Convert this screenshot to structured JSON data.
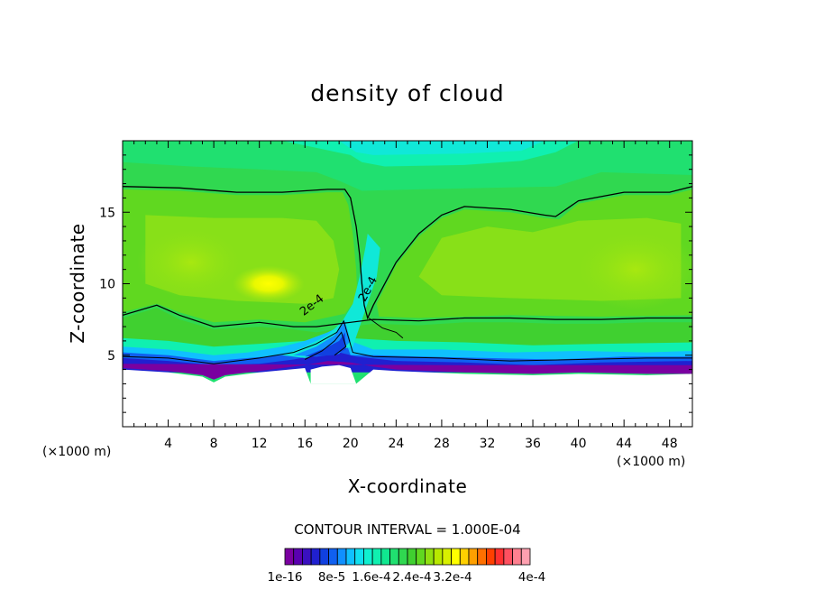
{
  "chart_data": {
    "type": "heatmap",
    "title": "density of cloud",
    "xlabel": "X-coordinate",
    "ylabel": "Z-coordinate",
    "x_unit": "(×1000 m)",
    "y_unit": "(×1000 m)",
    "xlim": [
      0,
      50
    ],
    "ylim": [
      0,
      20
    ],
    "x_ticks": [
      4,
      8,
      12,
      16,
      20,
      24,
      28,
      32,
      36,
      40,
      44,
      48
    ],
    "y_ticks": [
      5,
      10,
      15
    ],
    "contour_interval_text": "CONTOUR INTERVAL = 1.000E-04",
    "contour_level_labels": [
      "2e-4",
      "2e-4"
    ],
    "colorbar": {
      "colors": [
        "#7a00a0",
        "#5a00b0",
        "#3a10c0",
        "#2020d0",
        "#1040e0",
        "#1060f0",
        "#1090ff",
        "#10c0ff",
        "#10e0f0",
        "#10f0d0",
        "#10f0b0",
        "#10e890",
        "#20e070",
        "#30d850",
        "#40d030",
        "#60d820",
        "#90e010",
        "#b8e800",
        "#d8f000",
        "#ffff00",
        "#ffd000",
        "#ffa000",
        "#ff7000",
        "#ff4000",
        "#ff3030",
        "#ff5060",
        "#ff8090",
        "#ffa0b0"
      ],
      "labels": [
        "1e-16",
        "8e-5",
        "1.6e-4",
        "2.4e-4",
        "3.2e-4",
        "4e-4"
      ]
    },
    "contour_2e4": {
      "top_boundary": [
        [
          0,
          16.8
        ],
        [
          5,
          16.7
        ],
        [
          10,
          16.4
        ],
        [
          14,
          16.4
        ],
        [
          18,
          16.6
        ],
        [
          19.5,
          16.6
        ],
        [
          20,
          16.0
        ],
        [
          20.5,
          14.0
        ],
        [
          20.8,
          12.0
        ],
        [
          21,
          10.0
        ],
        [
          21.2,
          8.5
        ],
        [
          21.5,
          7.6
        ],
        [
          22,
          8.5
        ],
        [
          24,
          11.5
        ],
        [
          26,
          13.5
        ],
        [
          28,
          14.8
        ],
        [
          30,
          15.4
        ],
        [
          34,
          15.2
        ],
        [
          37,
          14.8
        ],
        [
          38,
          14.7
        ],
        [
          40,
          15.8
        ],
        [
          44,
          16.4
        ],
        [
          48,
          16.4
        ],
        [
          50,
          16.8
        ]
      ],
      "bottom_boundary": [
        [
          0,
          7.8
        ],
        [
          3,
          8.5
        ],
        [
          5,
          7.8
        ],
        [
          8,
          7.0
        ],
        [
          12,
          7.3
        ],
        [
          15,
          7.0
        ],
        [
          17,
          7.0
        ],
        [
          20,
          7.3
        ],
        [
          22,
          7.5
        ],
        [
          26,
          7.4
        ],
        [
          30,
          7.6
        ],
        [
          34,
          7.6
        ],
        [
          38,
          7.5
        ],
        [
          42,
          7.5
        ],
        [
          46,
          7.6
        ],
        [
          50,
          7.6
        ]
      ]
    },
    "cloud_base_km": [
      [
        0,
        3.7
      ],
      [
        8,
        3.4
      ],
      [
        10,
        3.8
      ],
      [
        16,
        4.3
      ],
      [
        18,
        4.4
      ],
      [
        20,
        4.5
      ],
      [
        22,
        4.2
      ],
      [
        30,
        3.8
      ],
      [
        40,
        3.8
      ],
      [
        50,
        3.7
      ]
    ],
    "max_region": {
      "x": 13,
      "z": 10,
      "value": "2.4e-4"
    }
  }
}
